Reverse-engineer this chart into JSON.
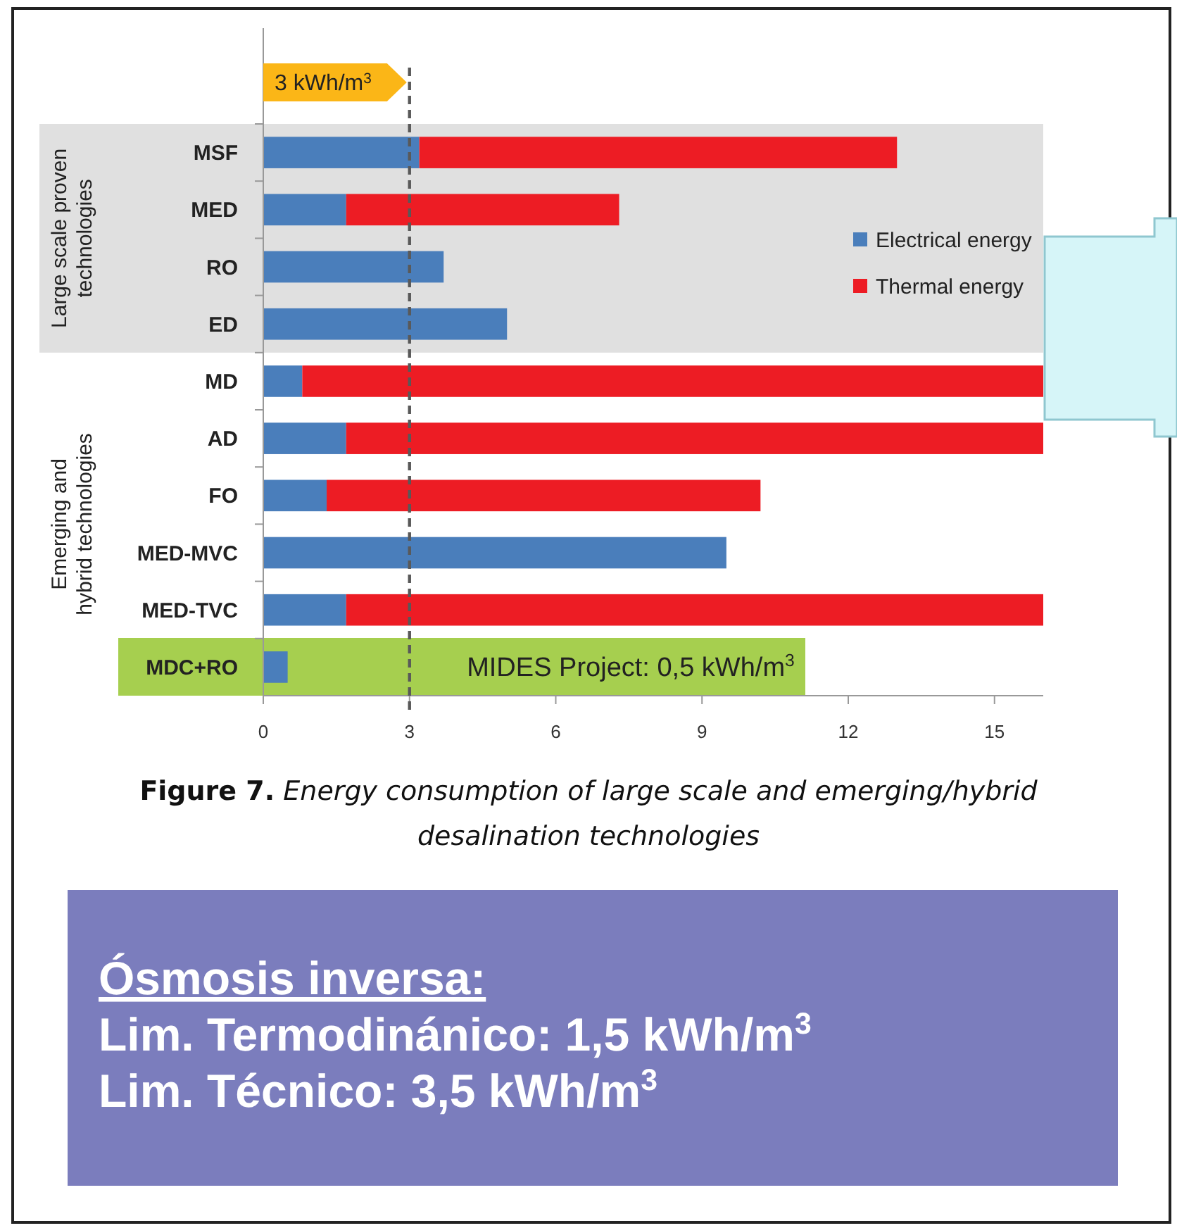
{
  "chart_data": {
    "type": "bar",
    "orientation": "horizontal",
    "stacked": true,
    "categories": [
      "MSF",
      "MED",
      "RO",
      "ED",
      "MD",
      "AD",
      "FO",
      "MED-MVC",
      "MED-TVC",
      "MDC+RO"
    ],
    "series": [
      {
        "name": "Electrical energy",
        "color": "#4a7ebb",
        "values": [
          3.2,
          1.7,
          3.7,
          5.0,
          0.8,
          1.7,
          1.3,
          9.5,
          1.7,
          0.5
        ]
      },
      {
        "name": "Thermal energy",
        "color": "#ed1c24",
        "values": [
          9.8,
          5.6,
          null,
          null,
          15.2,
          14.3,
          8.9,
          null,
          14.3,
          null
        ]
      }
    ],
    "xlim": [
      0,
      16
    ],
    "xticks": [
      0,
      3,
      6,
      9,
      12,
      15
    ],
    "grid": false,
    "legend": "right",
    "ref_lines": [
      {
        "axis": "x",
        "value": 3,
        "label": "3 kWh/m$^{3}$",
        "color": "#595959",
        "line_style": "dashed"
      }
    ],
    "annotations": [
      "Large scale proven technologies",
      "Emerging and hybrid technologies",
      "MIDES Project: 0,5 kWh/m$^{3}$",
      "Figure 7. Energy consumption of large scale and emerging/hybrid desalination technologies",
      "Ósmosis inversa:",
      "Lim. Termodinánico: 1,5 kWh/m$^{3}$",
      "Lim. Técnico: 3,5 kWh/m$^{3}$"
    ]
  }
}
